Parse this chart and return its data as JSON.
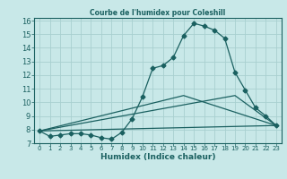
{
  "title": "Courbe de l'humidex pour Coleshill",
  "xlabel": "Humidex (Indice chaleur)",
  "bg_color": "#c8e8e8",
  "grid_color": "#a8d0d0",
  "line_color": "#1a6060",
  "xlim": [
    -0.5,
    23.5
  ],
  "ylim": [
    7,
    16.2
  ],
  "xticks": [
    0,
    1,
    2,
    3,
    4,
    5,
    6,
    7,
    8,
    9,
    10,
    11,
    12,
    13,
    14,
    15,
    16,
    17,
    18,
    19,
    20,
    21,
    22,
    23
  ],
  "yticks": [
    7,
    8,
    9,
    10,
    11,
    12,
    13,
    14,
    15,
    16
  ],
  "series1_x": [
    0,
    1,
    2,
    3,
    4,
    5,
    6,
    7,
    8,
    9,
    10,
    11,
    12,
    13,
    14,
    15,
    16,
    17,
    18,
    19,
    20,
    21,
    22,
    23
  ],
  "series1_y": [
    7.9,
    7.5,
    7.6,
    7.7,
    7.7,
    7.6,
    7.4,
    7.3,
    7.8,
    8.8,
    10.4,
    12.5,
    12.7,
    13.3,
    14.9,
    15.8,
    15.6,
    15.3,
    14.7,
    12.2,
    10.9,
    9.6,
    9.0,
    8.3
  ],
  "series2_x": [
    0,
    23
  ],
  "series2_y": [
    7.9,
    8.3
  ],
  "series3_x": [
    0,
    14,
    23
  ],
  "series3_y": [
    7.9,
    10.5,
    8.3
  ],
  "series4_x": [
    0,
    19,
    23
  ],
  "series4_y": [
    7.9,
    10.5,
    8.3
  ]
}
